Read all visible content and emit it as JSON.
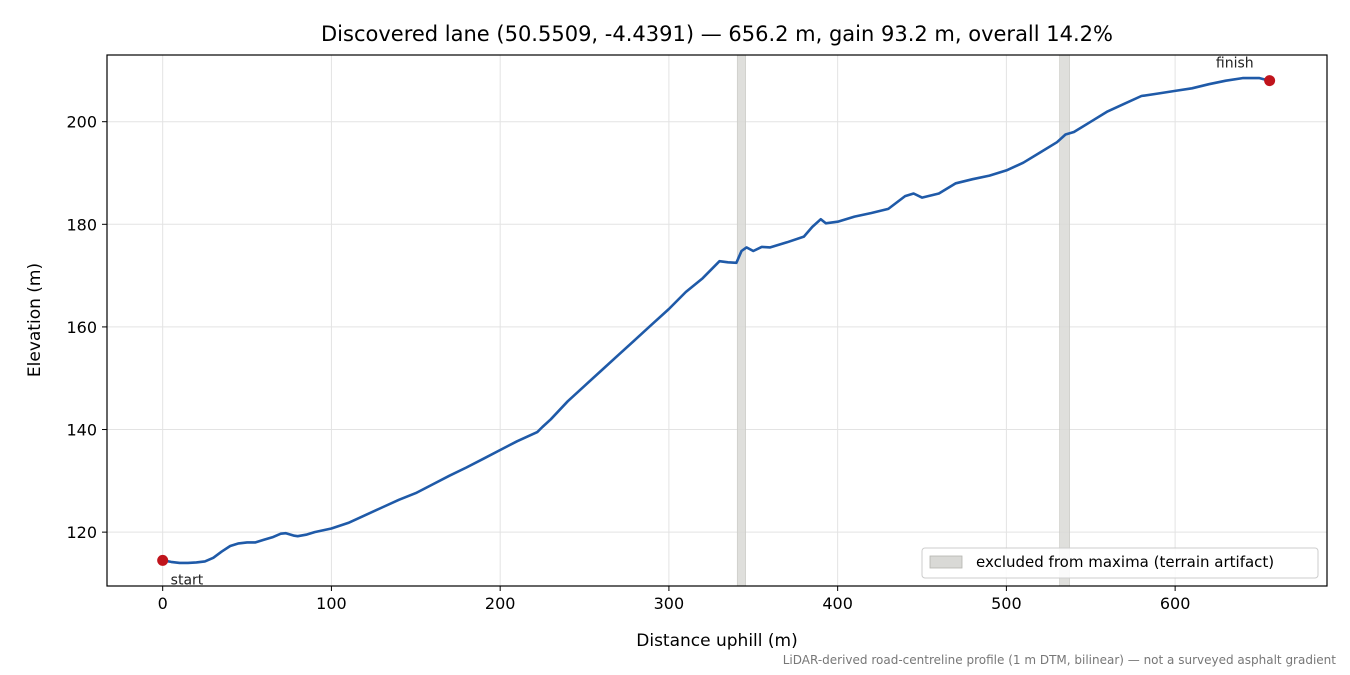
{
  "chart_data": {
    "type": "line",
    "title": "Discovered lane (50.5509, -4.4391) — 656.2 m, gain 93.2 m, overall 14.2%",
    "xlabel": "Distance uphill (m)",
    "ylabel": "Elevation (m)",
    "xlim": [
      -33,
      690
    ],
    "ylim": [
      109.5,
      213
    ],
    "xticks": [
      0,
      100,
      200,
      300,
      400,
      500,
      600
    ],
    "yticks": [
      120,
      140,
      160,
      180,
      200
    ],
    "xtick_labels": [
      "0",
      "100",
      "200",
      "300",
      "400",
      "500",
      "600"
    ],
    "ytick_labels": [
      "120",
      "140",
      "160",
      "180",
      "200"
    ],
    "grid": true,
    "line_color": "#1f5aa8",
    "series": [
      {
        "x": [
          0,
          5,
          10,
          15,
          20,
          25,
          30,
          35,
          40,
          45,
          50,
          55,
          60,
          65,
          70,
          73,
          78,
          80,
          85,
          90,
          100,
          110,
          120,
          130,
          140,
          150,
          160,
          170,
          180,
          190,
          200,
          210,
          222,
          225,
          230,
          240,
          250,
          260,
          270,
          280,
          290,
          300,
          310,
          320,
          330,
          335,
          340,
          343,
          346,
          350,
          355,
          360,
          370,
          380,
          385,
          390,
          393,
          400,
          410,
          420,
          430,
          440,
          445,
          450,
          460,
          470,
          480,
          490,
          500,
          510,
          520,
          530,
          535,
          540,
          550,
          560,
          570,
          580,
          590,
          600,
          610,
          620,
          630,
          640,
          650,
          656
        ],
        "y": [
          114.5,
          114.2,
          114.0,
          114.0,
          114.1,
          114.3,
          115.0,
          116.2,
          117.3,
          117.8,
          118.0,
          118.0,
          118.5,
          119.0,
          119.7,
          119.8,
          119.3,
          119.2,
          119.5,
          120.0,
          120.7,
          121.8,
          123.3,
          124.8,
          126.3,
          127.6,
          129.3,
          131.0,
          132.6,
          134.3,
          136.0,
          137.7,
          139.5,
          140.5,
          142.0,
          145.5,
          148.5,
          151.5,
          154.5,
          157.5,
          160.5,
          163.5,
          166.8,
          169.5,
          172.8,
          172.6,
          172.5,
          174.8,
          175.5,
          174.8,
          175.6,
          175.5,
          176.5,
          177.6,
          179.5,
          181.0,
          180.2,
          180.5,
          181.5,
          182.2,
          183.0,
          185.5,
          186.0,
          185.2,
          186.0,
          188.0,
          188.8,
          189.5,
          190.5,
          192.0,
          194.0,
          196.0,
          197.5,
          198.0,
          200.0,
          202.0,
          203.5,
          205.0,
          205.5,
          206.0,
          206.5,
          207.3,
          208.0,
          208.5,
          208.5,
          208.0
        ]
      }
    ],
    "markers": [
      {
        "x": 0,
        "y": 114.5,
        "label": "start",
        "color": "#c0141c"
      },
      {
        "x": 656,
        "y": 208.0,
        "label": "finish",
        "color": "#c0141c"
      }
    ],
    "excluded_bands": [
      {
        "x0": 340.5,
        "x1": 345.5
      },
      {
        "x0": 531.5,
        "x1": 537.5
      }
    ],
    "band_color": "#d9d9d6",
    "legend": {
      "label": "excluded from maxima (terrain artifact)",
      "placement": "lower-right"
    },
    "footnote": "LiDAR-derived road-centreline profile (1 m DTM, bilinear) — not a surveyed asphalt gradient"
  }
}
